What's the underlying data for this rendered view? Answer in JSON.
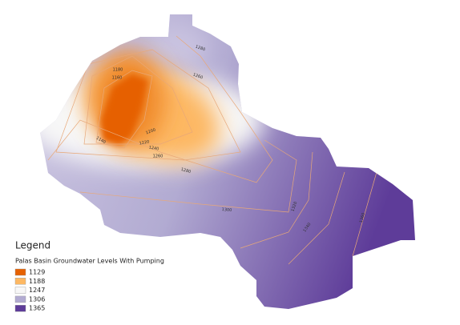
{
  "legend": {
    "title": "Legend",
    "layer": "Palas Basin Groundwater Levels With Pumping",
    "items": [
      {
        "label": "1129",
        "color": "#e66101"
      },
      {
        "label": "1188",
        "color": "#fdb863"
      },
      {
        "label": "1247",
        "color": "#f7f7f7"
      },
      {
        "label": "1306",
        "color": "#b2abd2"
      },
      {
        "label": "1365",
        "color": "#5e3c99"
      }
    ]
  },
  "contour_labels": [
    "1280",
    "1180",
    "1160",
    "1260",
    "1200",
    "1140",
    "1220",
    "1240",
    "1260",
    "1280",
    "1300",
    "1320",
    "1340",
    "1360"
  ]
}
